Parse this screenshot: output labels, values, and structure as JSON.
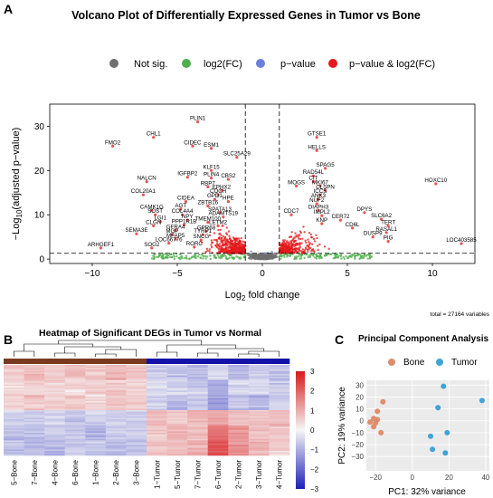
{
  "panel_labels": {
    "a": "A",
    "b": "B",
    "c": "C"
  },
  "colors": {
    "not_sig": "#6f6f6f",
    "fc": "#4daf4a",
    "pval": "#6a7fdb",
    "both": "#e41a1c",
    "bone": "#e08c6c",
    "tumor": "#3fa4d8",
    "heat_high": "#d7191c",
    "heat_mid": "#f6f6f6",
    "heat_low": "#1c1fb8",
    "bone_bar": "#7a3a20",
    "tumor_bar": "#1212a8"
  },
  "chart_data": [
    {
      "type": "scatter",
      "title": "Volcano Plot of Differentially Expressed Genes in Tumor vs Bone",
      "xlabel_main": "Log",
      "xlabel_sub": "2",
      "xlabel_rest": " fold change",
      "ylabel_pre": "−Log",
      "ylabel_sub": "10",
      "ylabel_rest": "(adjusted p−value)",
      "xlim": [
        -12.5,
        12.5
      ],
      "ylim": [
        -1,
        35
      ],
      "xticks": [
        -10,
        -5,
        0,
        5,
        10
      ],
      "yticks": [
        0,
        10,
        20,
        30
      ],
      "fc_cutoff": 1,
      "p_cutoff_y": 1.3,
      "legend": [
        "Not sig.",
        "log2(FC)",
        "p−value",
        "p−value & log2(FC)"
      ],
      "caption": "total = 27164 variables",
      "labeled_genes": [
        {
          "x": -3.8,
          "y": 31.0,
          "label": "PLIN1"
        },
        {
          "x": -6.4,
          "y": 27.5,
          "label": "CHL1"
        },
        {
          "x": -8.8,
          "y": 25.5,
          "label": "FMO2"
        },
        {
          "x": -4.1,
          "y": 25.5,
          "label": "CIDEC"
        },
        {
          "x": -3.0,
          "y": 25.0,
          "label": "ESM1"
        },
        {
          "x": -1.5,
          "y": 23.0,
          "label": "SLC25A29"
        },
        {
          "x": -3.0,
          "y": 20.0,
          "label": "KLF15"
        },
        {
          "x": -6.8,
          "y": 17.5,
          "label": "NALCN"
        },
        {
          "x": -4.4,
          "y": 18.5,
          "label": "IGFBP2"
        },
        {
          "x": -3.0,
          "y": 18.3,
          "label": "PLIN4"
        },
        {
          "x": -2.0,
          "y": 18.0,
          "label": "CBS2"
        },
        {
          "x": -3.2,
          "y": 16.3,
          "label": "RBP7"
        },
        {
          "x": -2.4,
          "y": 15.5,
          "label": "EPHX2"
        },
        {
          "x": -2.6,
          "y": 14.5,
          "label": "COCH"
        },
        {
          "x": -2.8,
          "y": 13.5,
          "label": "GPD1"
        },
        {
          "x": -2.0,
          "y": 13.0,
          "label": "HPE"
        },
        {
          "x": -7.0,
          "y": 14.5,
          "label": "COL20A1"
        },
        {
          "x": -4.5,
          "y": 13.0,
          "label": "CIDEA"
        },
        {
          "x": -3.2,
          "y": 12.0,
          "label": "ZBTB16"
        },
        {
          "x": -6.5,
          "y": 11.0,
          "label": "CAMK1G"
        },
        {
          "x": -4.8,
          "y": 11.3,
          "label": "AGT"
        },
        {
          "x": -6.3,
          "y": 10.0,
          "label": "SOST"
        },
        {
          "x": -4.7,
          "y": 10.0,
          "label": "COL4A4"
        },
        {
          "x": -2.5,
          "y": 10.5,
          "label": "SPATA13"
        },
        {
          "x": -2.3,
          "y": 9.5,
          "label": "ADAMTS19"
        },
        {
          "x": -4.4,
          "y": 8.8,
          "label": "NPY"
        },
        {
          "x": -6.0,
          "y": 8.5,
          "label": "LGI1"
        },
        {
          "x": -3.2,
          "y": 8.3,
          "label": "TMEM100"
        },
        {
          "x": -6.4,
          "y": 7.5,
          "label": "CLGN"
        },
        {
          "x": -4.6,
          "y": 7.7,
          "label": "PPP1R1B"
        },
        {
          "x": -2.6,
          "y": 7.5,
          "label": "LETM2"
        },
        {
          "x": -5.1,
          "y": 6.5,
          "label": "GFRA4"
        },
        {
          "x": -3.3,
          "y": 6.3,
          "label": "GPR68"
        },
        {
          "x": -7.4,
          "y": 5.7,
          "label": "SEMA3E"
        },
        {
          "x": -5.3,
          "y": 5.5,
          "label": "MGP"
        },
        {
          "x": -3.5,
          "y": 5.5,
          "label": "TYRP1"
        },
        {
          "x": -5.1,
          "y": 4.5,
          "label": "MFAP5"
        },
        {
          "x": -3.6,
          "y": 4.3,
          "label": "SNCG"
        },
        {
          "x": -5.5,
          "y": 3.6,
          "label": "LOC66776"
        },
        {
          "x": -6.5,
          "y": 2.5,
          "label": "SOG2"
        },
        {
          "x": -4.0,
          "y": 2.7,
          "label": "RORC"
        },
        {
          "x": -9.5,
          "y": 2.5,
          "label": "ARHGEF1"
        },
        {
          "x": 3.2,
          "y": 27.5,
          "label": "GTSE1"
        },
        {
          "x": 3.2,
          "y": 24.5,
          "label": "HELLS"
        },
        {
          "x": 3.7,
          "y": 20.5,
          "label": "SPAG5"
        },
        {
          "x": 3.0,
          "y": 18.8,
          "label": "RAD54L"
        },
        {
          "x": 3.0,
          "y": 17.5,
          "label": "CIT"
        },
        {
          "x": 2.0,
          "y": 16.5,
          "label": "MOGS"
        },
        {
          "x": 3.4,
          "y": 16.5,
          "label": "MKI67"
        },
        {
          "x": 3.7,
          "y": 15.5,
          "label": "CLSPN"
        },
        {
          "x": 3.4,
          "y": 14.5,
          "label": "ICCS"
        },
        {
          "x": 3.3,
          "y": 13.5,
          "label": "ANK3"
        },
        {
          "x": 3.2,
          "y": 12.5,
          "label": "NUF2"
        },
        {
          "x": 3.3,
          "y": 11.0,
          "label": "DIAPH3"
        },
        {
          "x": 6.0,
          "y": 10.5,
          "label": "DPYS"
        },
        {
          "x": 1.7,
          "y": 10.0,
          "label": "CDC7"
        },
        {
          "x": 3.5,
          "y": 9.8,
          "label": "IMPL2"
        },
        {
          "x": 7.0,
          "y": 9.0,
          "label": "SLC6A2"
        },
        {
          "x": 4.6,
          "y": 8.8,
          "label": "CER72"
        },
        {
          "x": 3.5,
          "y": 8.0,
          "label": "KNP"
        },
        {
          "x": 7.4,
          "y": 7.5,
          "label": "TERT"
        },
        {
          "x": 5.3,
          "y": 7.0,
          "label": "CD6L"
        },
        {
          "x": 7.3,
          "y": 6.0,
          "label": "RASAL1"
        },
        {
          "x": 6.5,
          "y": 5.0,
          "label": "DUSP9"
        },
        {
          "x": 7.4,
          "y": 4.0,
          "label": "PIG"
        },
        {
          "x": 10.2,
          "y": 17.0,
          "label": "HOXC10"
        },
        {
          "x": 11.7,
          "y": 3.5,
          "label": "LOC403585"
        }
      ]
    },
    {
      "type": "heatmap",
      "title": "Heatmap of Significant DEGs in Tumor vs Normal",
      "columns": [
        "5−Bone",
        "7−Bone",
        "4−Bone",
        "6−Bone",
        "1−Bone",
        "2−Bone",
        "3−Bone",
        "1−Tumor",
        "5−Tumor",
        "7−Tumor",
        "6−Tumor",
        "2−Tumor",
        "3−Tumor",
        "4−Tumor"
      ],
      "groups": [
        "Bone",
        "Bone",
        "Bone",
        "Bone",
        "Bone",
        "Bone",
        "Bone",
        "Tumor",
        "Tumor",
        "Tumor",
        "Tumor",
        "Tumor",
        "Tumor",
        "Tumor"
      ],
      "scale": [
        -3,
        3
      ],
      "scale_ticks": [
        3,
        2,
        1,
        0,
        -1,
        -2,
        -3
      ],
      "block_values": [
        [
          0.6,
          0.8,
          0.5,
          0.7,
          0.6,
          0.9,
          0.7,
          -0.6,
          -0.7,
          -0.8,
          -0.5,
          -0.9,
          -0.6,
          -0.7
        ],
        [
          0.4,
          0.5,
          0.6,
          0.4,
          0.5,
          0.6,
          0.5,
          -0.4,
          -0.5,
          -0.6,
          -1.0,
          -0.5,
          -0.4,
          -0.6
        ],
        [
          0.5,
          0.7,
          0.6,
          0.6,
          0.4,
          0.7,
          0.6,
          -0.5,
          -0.8,
          -0.6,
          -1.2,
          -0.7,
          -0.9,
          -0.5
        ],
        [
          -0.5,
          -0.6,
          -0.4,
          -0.7,
          -0.5,
          -0.6,
          -0.5,
          0.8,
          0.6,
          0.9,
          1.0,
          0.7,
          0.6,
          0.8
        ],
        [
          -0.8,
          -0.7,
          -0.6,
          -0.8,
          -0.9,
          -0.7,
          -0.6,
          0.6,
          0.9,
          0.7,
          1.8,
          1.2,
          0.8,
          0.7
        ],
        [
          -0.7,
          -0.8,
          -0.9,
          -0.6,
          -0.7,
          -0.8,
          -0.7,
          0.7,
          0.8,
          1.0,
          2.2,
          1.4,
          0.9,
          0.6
        ]
      ]
    },
    {
      "type": "scatter",
      "title": "Principal Component Analysis",
      "xlabel": "PC1: 32% variance",
      "ylabel": "PC2: 19% variance",
      "xlim": [
        -25,
        42
      ],
      "ylim": [
        -42,
        34
      ],
      "xticks": [
        -20,
        0,
        20,
        40
      ],
      "yticks": [
        -30,
        -20,
        -10,
        0,
        10,
        20,
        30
      ],
      "legend": [
        "Bone",
        "Tumor"
      ],
      "series": [
        {
          "name": "Bone",
          "points": [
            [
              -16,
              16
            ],
            [
              -19,
              8
            ],
            [
              -21,
              2
            ],
            [
              -23,
              -1
            ],
            [
              -20,
              -2
            ],
            [
              -19,
              1
            ],
            [
              -21,
              -5
            ],
            [
              -17,
              -10
            ]
          ]
        },
        {
          "name": "Tumor",
          "points": [
            [
              17,
              29
            ],
            [
              38,
              17
            ],
            [
              14,
              11
            ],
            [
              10,
              -13
            ],
            [
              19,
              -10
            ],
            [
              11,
              -24
            ],
            [
              18,
              -27
            ]
          ]
        }
      ]
    }
  ]
}
